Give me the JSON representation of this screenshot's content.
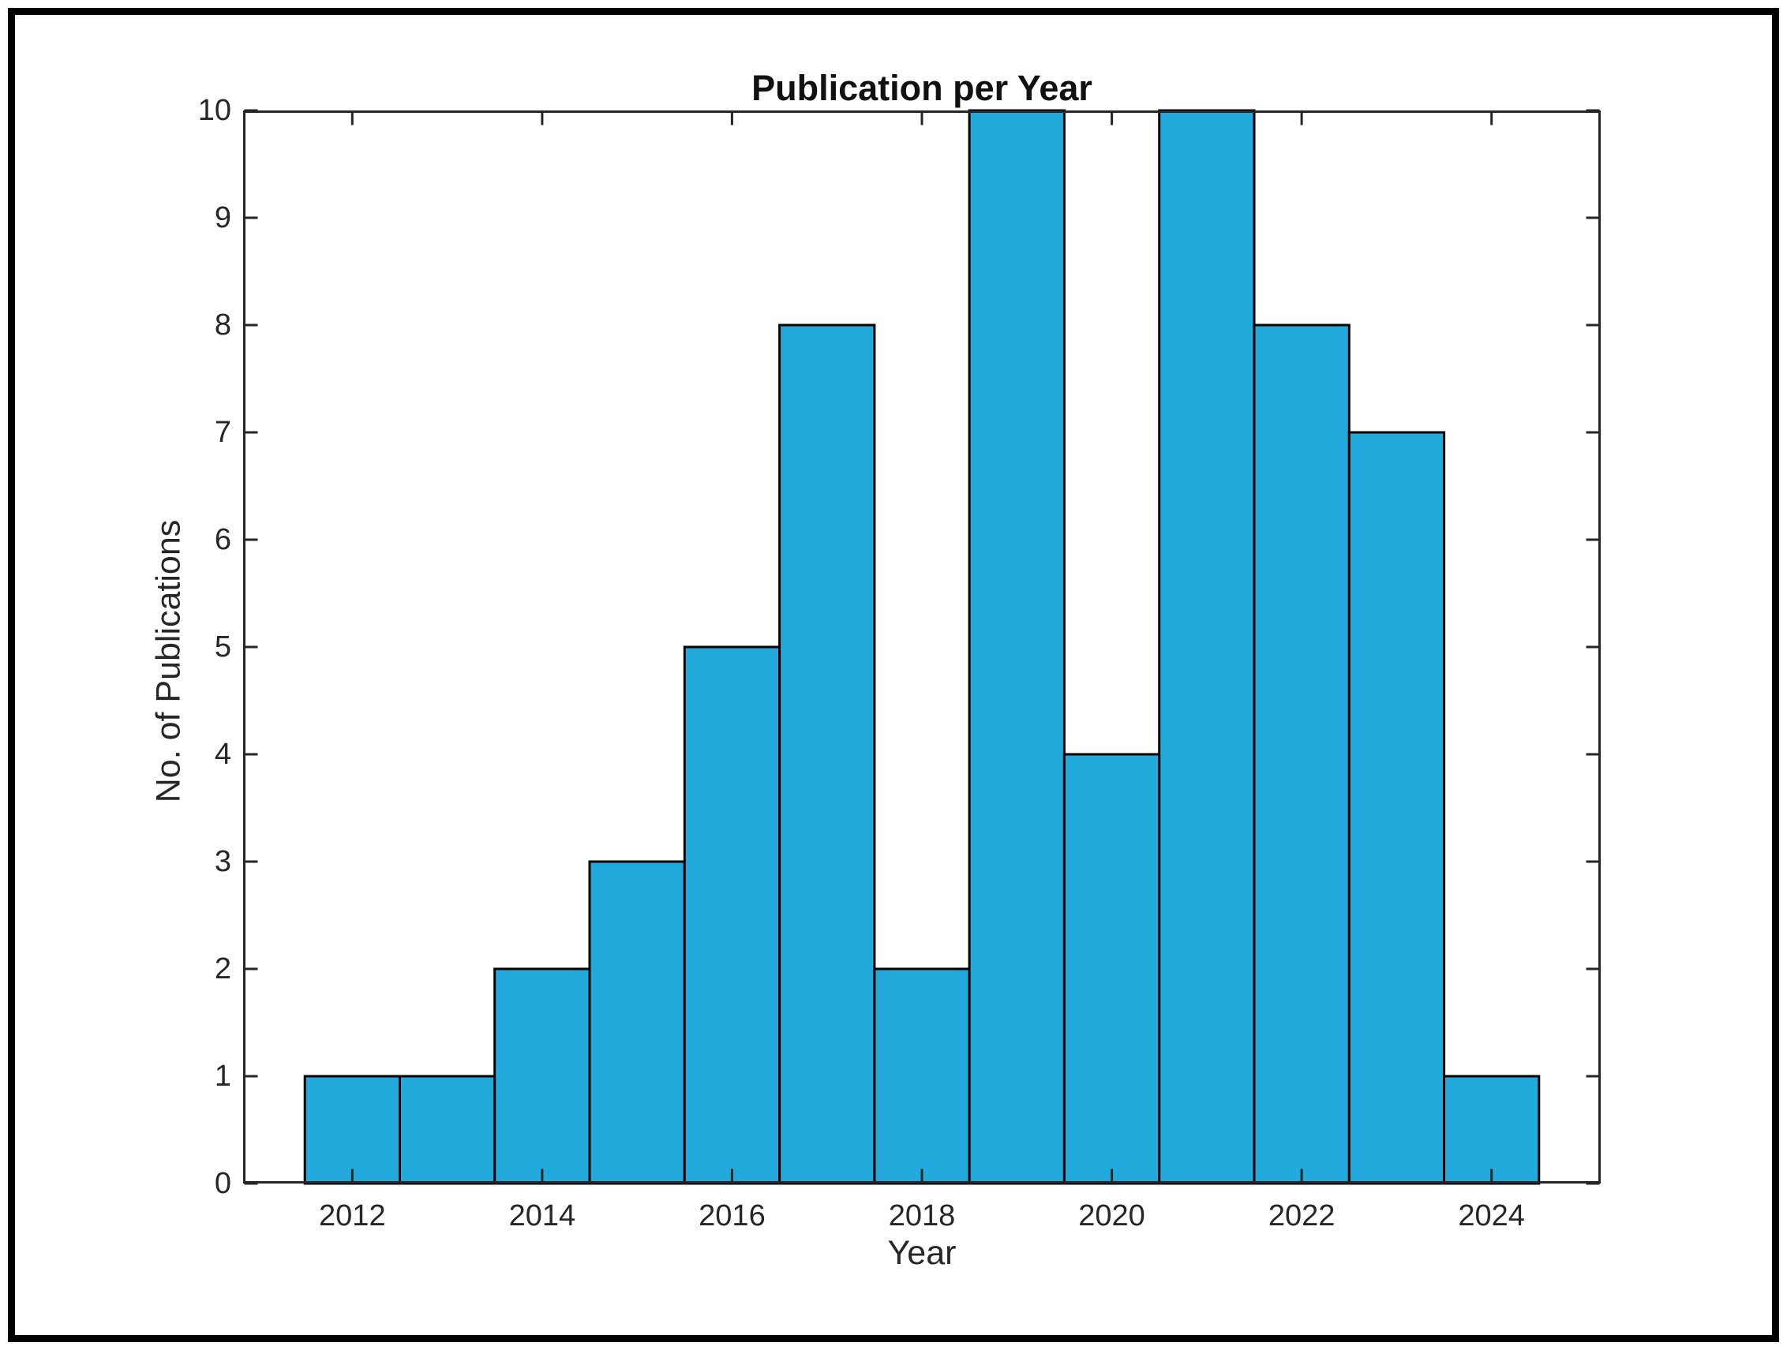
{
  "figure": {
    "background": "#ffffff",
    "frame_color": "#000000"
  },
  "chart_data": {
    "type": "bar",
    "subtype": "histogram",
    "title": "Publication per Year",
    "xlabel": "Year",
    "ylabel": "No. of Publications",
    "categories": [
      2012,
      2013,
      2014,
      2015,
      2016,
      2017,
      2018,
      2019,
      2020,
      2021,
      2022,
      2023,
      2024
    ],
    "values": [
      1,
      1,
      2,
      3,
      5,
      8,
      2,
      10,
      4,
      10,
      8,
      7,
      1
    ],
    "bin_width": 1,
    "xlim": [
      2010.85,
      2025.15
    ],
    "ylim": [
      0,
      10
    ],
    "x_ticks": [
      2012,
      2014,
      2016,
      2018,
      2020,
      2022,
      2024
    ],
    "y_ticks": [
      0,
      1,
      2,
      3,
      4,
      5,
      6,
      7,
      8,
      9,
      10
    ],
    "grid": false,
    "legend": null,
    "bar_color": "#23AADC",
    "bar_edge_color": "#000000",
    "axis_color": "#262626",
    "tick_direction": "in",
    "box": true
  }
}
